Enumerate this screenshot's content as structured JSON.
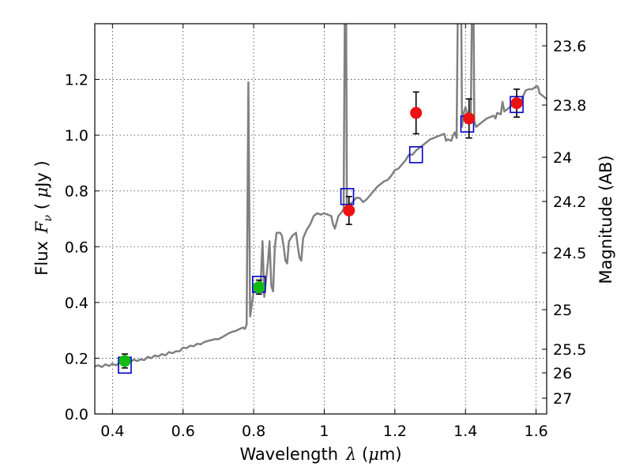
{
  "chart_data": {
    "type": "scatter",
    "xlabel": {
      "text": "Wavelength",
      "sym": "λ",
      "units_open": " (",
      "units_mu": "μ",
      "units_rest": "m)"
    },
    "ylabel": {
      "text": "Flux",
      "sym": "F",
      "sub": "ν",
      "units_open": " ( ",
      "units_mu": "μ",
      "units_rest": "Jy )"
    },
    "y2label": "Magnitude (AB)",
    "xlim": [
      0.35,
      1.63
    ],
    "ylim": [
      0.0,
      1.4
    ],
    "xticks": [
      {
        "value": 0.4,
        "label": "0.4"
      },
      {
        "value": 0.6,
        "label": "0.6"
      },
      {
        "value": 0.8,
        "label": "0.8"
      },
      {
        "value": 1.0,
        "label": "1"
      },
      {
        "value": 1.2,
        "label": "1.2"
      },
      {
        "value": 1.4,
        "label": "1.4"
      },
      {
        "value": 1.6,
        "label": "1.6"
      }
    ],
    "yticks": [
      {
        "value": 0.0,
        "label": "0.0"
      },
      {
        "value": 0.2,
        "label": "0.2"
      },
      {
        "value": 0.4,
        "label": "0.4"
      },
      {
        "value": 0.6,
        "label": "0.6"
      },
      {
        "value": 0.8,
        "label": "0.8"
      },
      {
        "value": 1.0,
        "label": "1.0"
      },
      {
        "value": 1.2,
        "label": "1.2"
      }
    ],
    "y2ticks": [
      {
        "label": "23.6"
      },
      {
        "label": "23.8"
      },
      {
        "label": "24"
      },
      {
        "label": "24.2"
      },
      {
        "label": "24.5"
      },
      {
        "label": "25"
      },
      {
        "label": "25.5"
      },
      {
        "label": "26"
      },
      {
        "label": "27"
      }
    ],
    "grid": true,
    "colors": {
      "spectrum": "#808080",
      "model_photometry": "#0000cc",
      "green_points": "#11bb11",
      "red_points": "#ee1111",
      "error_bars": "#000000"
    },
    "spectrum": [
      [
        0.35,
        0.17
      ],
      [
        0.36,
        0.175
      ],
      [
        0.37,
        0.168
      ],
      [
        0.38,
        0.178
      ],
      [
        0.39,
        0.172
      ],
      [
        0.4,
        0.18
      ],
      [
        0.41,
        0.175
      ],
      [
        0.42,
        0.183
      ],
      [
        0.43,
        0.18
      ],
      [
        0.44,
        0.19
      ],
      [
        0.45,
        0.186
      ],
      [
        0.46,
        0.195
      ],
      [
        0.47,
        0.19
      ],
      [
        0.48,
        0.196
      ],
      [
        0.49,
        0.193
      ],
      [
        0.5,
        0.205
      ],
      [
        0.51,
        0.2
      ],
      [
        0.52,
        0.21
      ],
      [
        0.53,
        0.206
      ],
      [
        0.54,
        0.215
      ],
      [
        0.55,
        0.21
      ],
      [
        0.56,
        0.222
      ],
      [
        0.57,
        0.218
      ],
      [
        0.58,
        0.225
      ],
      [
        0.59,
        0.225
      ],
      [
        0.6,
        0.238
      ],
      [
        0.61,
        0.236
      ],
      [
        0.62,
        0.245
      ],
      [
        0.63,
        0.243
      ],
      [
        0.64,
        0.252
      ],
      [
        0.65,
        0.25
      ],
      [
        0.66,
        0.258
      ],
      [
        0.67,
        0.262
      ],
      [
        0.68,
        0.265
      ],
      [
        0.69,
        0.268
      ],
      [
        0.7,
        0.268
      ],
      [
        0.71,
        0.275
      ],
      [
        0.72,
        0.282
      ],
      [
        0.73,
        0.29
      ],
      [
        0.74,
        0.295
      ],
      [
        0.75,
        0.298
      ],
      [
        0.76,
        0.305
      ],
      [
        0.77,
        0.31
      ],
      [
        0.775,
        0.305
      ],
      [
        0.78,
        0.32
      ],
      [
        0.785,
        1.19
      ],
      [
        0.79,
        0.35
      ],
      [
        0.8,
        0.44
      ],
      [
        0.81,
        0.45
      ],
      [
        0.815,
        0.45
      ],
      [
        0.82,
        0.47
      ],
      [
        0.825,
        0.62
      ],
      [
        0.83,
        0.42
      ],
      [
        0.835,
        0.48
      ],
      [
        0.84,
        0.54
      ],
      [
        0.845,
        0.62
      ],
      [
        0.85,
        0.46
      ],
      [
        0.855,
        0.44
      ],
      [
        0.86,
        0.6
      ],
      [
        0.865,
        0.65
      ],
      [
        0.875,
        0.65
      ],
      [
        0.88,
        0.64
      ],
      [
        0.885,
        0.6
      ],
      [
        0.89,
        0.55
      ],
      [
        0.895,
        0.54
      ],
      [
        0.9,
        0.62
      ],
      [
        0.91,
        0.64
      ],
      [
        0.92,
        0.65
      ],
      [
        0.925,
        0.6
      ],
      [
        0.93,
        0.56
      ],
      [
        0.935,
        0.55
      ],
      [
        0.94,
        0.63
      ],
      [
        0.95,
        0.66
      ],
      [
        0.96,
        0.68
      ],
      [
        0.97,
        0.71
      ],
      [
        0.98,
        0.72
      ],
      [
        0.99,
        0.715
      ],
      [
        1.0,
        0.72
      ],
      [
        1.01,
        0.715
      ],
      [
        1.02,
        0.71
      ],
      [
        1.025,
        0.68
      ],
      [
        1.03,
        0.665
      ],
      [
        1.04,
        0.71
      ],
      [
        1.05,
        0.725
      ],
      [
        1.055,
        0.735
      ],
      [
        1.058,
        1.42
      ],
      [
        1.062,
        1.42
      ],
      [
        1.064,
        0.75
      ],
      [
        1.07,
        0.75
      ],
      [
        1.08,
        0.76
      ],
      [
        1.09,
        0.775
      ],
      [
        1.1,
        0.775
      ],
      [
        1.11,
        0.76
      ],
      [
        1.12,
        0.77
      ],
      [
        1.13,
        0.785
      ],
      [
        1.14,
        0.8
      ],
      [
        1.15,
        0.815
      ],
      [
        1.16,
        0.825
      ],
      [
        1.17,
        0.835
      ],
      [
        1.18,
        0.84
      ],
      [
        1.19,
        0.855
      ],
      [
        1.2,
        0.875
      ],
      [
        1.21,
        0.88
      ],
      [
        1.22,
        0.895
      ],
      [
        1.23,
        0.91
      ],
      [
        1.24,
        0.93
      ],
      [
        1.25,
        0.93
      ],
      [
        1.26,
        0.945
      ],
      [
        1.27,
        0.955
      ],
      [
        1.28,
        0.965
      ],
      [
        1.29,
        0.975
      ],
      [
        1.3,
        0.985
      ],
      [
        1.31,
        0.99
      ],
      [
        1.32,
        0.995
      ],
      [
        1.33,
        1.0
      ],
      [
        1.34,
        1.005
      ],
      [
        1.345,
        0.98
      ],
      [
        1.35,
        0.985
      ],
      [
        1.36,
        0.98
      ],
      [
        1.365,
        1.0
      ],
      [
        1.37,
        1.01
      ],
      [
        1.375,
        0.99
      ],
      [
        1.378,
        1.42
      ],
      [
        1.388,
        1.42
      ],
      [
        1.39,
        1.03
      ],
      [
        1.395,
        1.08
      ],
      [
        1.4,
        1.1
      ],
      [
        1.41,
        1.06
      ],
      [
        1.415,
        1.05
      ],
      [
        1.418,
        1.42
      ],
      [
        1.423,
        1.42
      ],
      [
        1.425,
        1.05
      ],
      [
        1.43,
        1.03
      ],
      [
        1.44,
        1.04
      ],
      [
        1.45,
        1.05
      ],
      [
        1.46,
        1.06
      ],
      [
        1.47,
        1.065
      ],
      [
        1.48,
        1.07
      ],
      [
        1.485,
        1.06
      ],
      [
        1.49,
        1.08
      ],
      [
        1.5,
        1.075
      ],
      [
        1.505,
        1.12
      ],
      [
        1.51,
        1.085
      ],
      [
        1.52,
        1.095
      ],
      [
        1.53,
        1.105
      ],
      [
        1.54,
        1.11
      ],
      [
        1.55,
        1.1
      ],
      [
        1.56,
        1.13
      ],
      [
        1.57,
        1.16
      ],
      [
        1.58,
        1.165
      ],
      [
        1.59,
        1.165
      ],
      [
        1.6,
        1.175
      ],
      [
        1.605,
        1.175
      ],
      [
        1.61,
        1.15
      ],
      [
        1.62,
        1.14
      ],
      [
        1.63,
        1.13
      ]
    ],
    "model_photometry": [
      {
        "x": 0.435,
        "y": 0.175
      },
      {
        "x": 0.815,
        "y": 0.465
      },
      {
        "x": 1.065,
        "y": 0.78
      },
      {
        "x": 1.26,
        "y": 0.93
      },
      {
        "x": 1.405,
        "y": 1.04
      },
      {
        "x": 1.545,
        "y": 1.11
      }
    ],
    "green_points": [
      {
        "x": 0.435,
        "y": 0.19,
        "err": 0.025
      },
      {
        "x": 0.815,
        "y": 0.455,
        "err": 0.025
      }
    ],
    "red_points": [
      {
        "x": 1.07,
        "y": 0.73,
        "err": 0.05
      },
      {
        "x": 1.26,
        "y": 1.08,
        "err": 0.075
      },
      {
        "x": 1.41,
        "y": 1.06,
        "err": 0.07
      },
      {
        "x": 1.545,
        "y": 1.115,
        "err": 0.05
      }
    ]
  }
}
